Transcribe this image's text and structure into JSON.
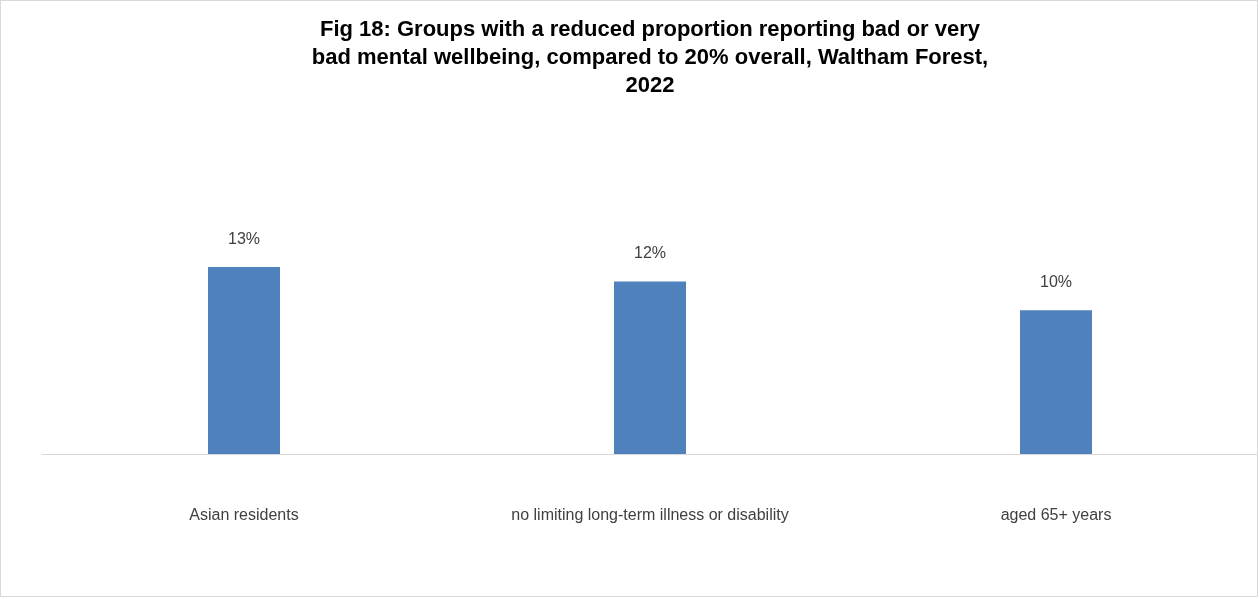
{
  "chart_data": {
    "type": "bar",
    "title": "Fig 18: Groups with a reduced proportion reporting bad or very bad mental wellbeing, compared to 20% overall, Waltham Forest, 2022",
    "categories": [
      "Asian residents",
      "no limiting long-term illness or disability",
      "aged 65+ years"
    ],
    "values": [
      13,
      12,
      10
    ],
    "value_labels": [
      "13%",
      "12%",
      "10%"
    ],
    "color": "#4f81bd"
  }
}
